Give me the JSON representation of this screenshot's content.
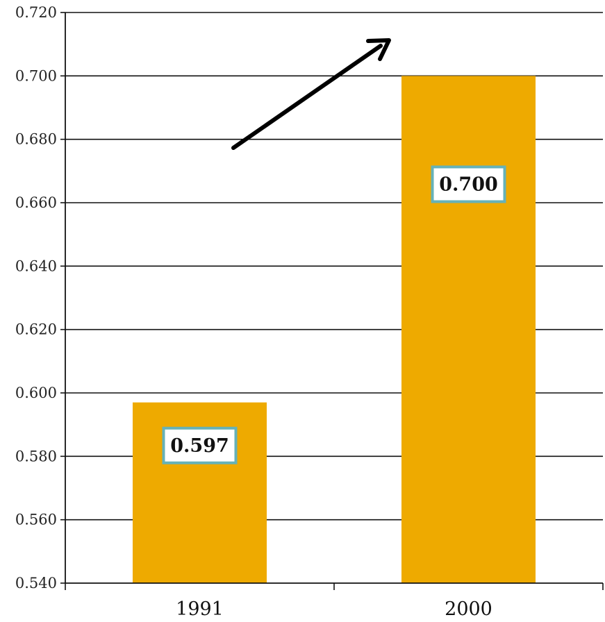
{
  "chart_data": {
    "type": "bar",
    "categories": [
      "1991",
      "2000"
    ],
    "values": [
      0.597,
      0.7
    ],
    "data_labels": [
      "0.597",
      "0.700"
    ],
    "title": "",
    "xlabel": "",
    "ylabel": "",
    "ylim": [
      0.54,
      0.72
    ],
    "yticks": [
      "0.540",
      "0.560",
      "0.580",
      "0.600",
      "0.620",
      "0.640",
      "0.660",
      "0.680",
      "0.700",
      "0.720"
    ],
    "grid": true,
    "annotations": [
      "upward-trend-arrow"
    ]
  },
  "colors": {
    "bar": "#EEAA00",
    "gridline": "#111111",
    "label_border": "#66B2B8",
    "label_fill": "#ffffff",
    "arrow": "#000000"
  }
}
